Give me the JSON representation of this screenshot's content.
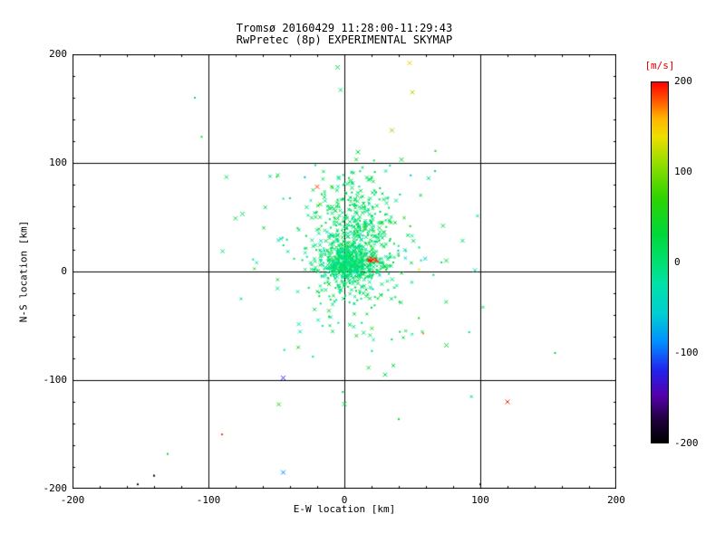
{
  "chart_data": {
    "type": "scatter",
    "title": "Tromsø 20160429 11:28:00-11:29:43",
    "subtitle": "RwPretec (8p) EXPERIMENTAL SKYMAP",
    "xlabel": "E-W location [km]",
    "ylabel": "N-S location [km]",
    "xlim": [
      -200,
      200
    ],
    "ylim": [
      -200,
      200
    ],
    "xticks": [
      -200,
      -100,
      0,
      100,
      200
    ],
    "yticks": [
      -200,
      -100,
      0,
      100,
      200
    ],
    "minor_tick_step": 20,
    "grid_x": [
      -100,
      0,
      100
    ],
    "grid_y": [
      -100,
      0,
      100
    ],
    "grid_on": true,
    "marker": "cross",
    "colorbar": {
      "title": "[m/s]",
      "ticks": [
        200,
        100,
        0,
        -100,
        -200
      ],
      "range": [
        -200,
        200
      ],
      "title_color": "#e00000",
      "stops": [
        [
          0.0,
          "#000000"
        ],
        [
          0.06,
          "#1c0038"
        ],
        [
          0.13,
          "#5500aa"
        ],
        [
          0.2,
          "#2222ee"
        ],
        [
          0.28,
          "#0090ff"
        ],
        [
          0.36,
          "#00cfd0"
        ],
        [
          0.44,
          "#00e2a8"
        ],
        [
          0.5,
          "#00e070"
        ],
        [
          0.58,
          "#00d838"
        ],
        [
          0.68,
          "#2ed400"
        ],
        [
          0.78,
          "#9ade00"
        ],
        [
          0.85,
          "#eede00"
        ],
        [
          0.9,
          "#ffb400"
        ],
        [
          0.95,
          "#ff5500"
        ],
        [
          1.0,
          "#ff0000"
        ]
      ]
    },
    "seed": 20160429,
    "clusters": [
      {
        "count": 520,
        "cx": 8,
        "cy": 32,
        "sx": 15,
        "sy": 28,
        "v_mean": 8,
        "v_sd": 22
      },
      {
        "count": 420,
        "cx": 4,
        "cy": 7,
        "sx": 11,
        "sy": 8,
        "v_mean": 0,
        "v_sd": 15
      },
      {
        "count": 170,
        "cx": 6,
        "cy": 14,
        "sx": 38,
        "sy": 50,
        "v_mean": 5,
        "v_sd": 28
      },
      {
        "count": 9,
        "cx": 21,
        "cy": 10,
        "sx": 2,
        "sy": 2,
        "v_mean": 195,
        "v_sd": 8
      }
    ],
    "outliers": [
      [
        -110,
        160,
        10,
        "d"
      ],
      [
        -105,
        124,
        22,
        "d"
      ],
      [
        -5,
        188,
        25,
        "x"
      ],
      [
        48,
        192,
        150,
        "x"
      ],
      [
        50,
        165,
        115,
        "x"
      ],
      [
        35,
        130,
        105,
        "x"
      ],
      [
        10,
        110,
        25,
        "x"
      ],
      [
        42,
        103,
        30,
        "x"
      ],
      [
        -20,
        78,
        185,
        "x"
      ],
      [
        -75,
        53,
        15,
        "x"
      ],
      [
        55,
        2,
        140,
        "d"
      ],
      [
        75,
        10,
        20,
        "x"
      ],
      [
        58,
        -57,
        170,
        "d"
      ],
      [
        75,
        -68,
        35,
        "x"
      ],
      [
        30,
        -95,
        15,
        "x"
      ],
      [
        -45,
        -98,
        -120,
        "x"
      ],
      [
        0,
        -122,
        25,
        "x"
      ],
      [
        40,
        -136,
        30,
        "d"
      ],
      [
        120,
        -120,
        190,
        "x"
      ],
      [
        155,
        -75,
        25,
        "d"
      ],
      [
        -90,
        -150,
        185,
        "d"
      ],
      [
        -45,
        -185,
        -90,
        "x"
      ],
      [
        -130,
        -168,
        35,
        "d"
      ],
      [
        -152,
        -196,
        -180,
        "d"
      ],
      [
        -140,
        -188,
        -200,
        "d"
      ],
      [
        100,
        -196,
        -195,
        "d"
      ]
    ]
  }
}
